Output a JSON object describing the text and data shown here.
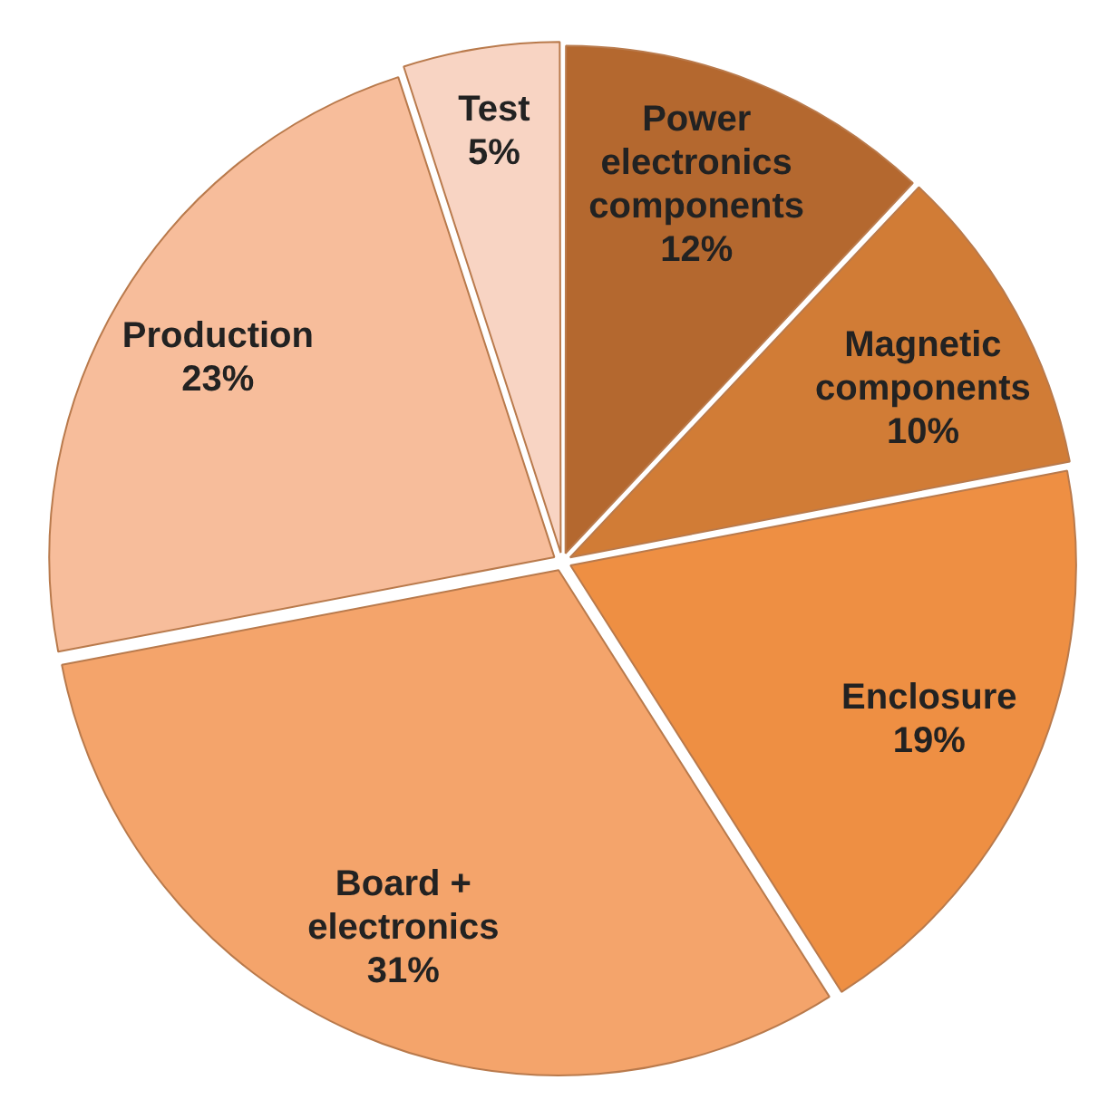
{
  "chart_data": {
    "type": "pie",
    "categories": [
      "Power electronics components",
      "Magnetic components",
      "Enclosure",
      "Board + electronics",
      "Production",
      "Test"
    ],
    "values": [
      12,
      10,
      19,
      31,
      23,
      5
    ],
    "colors": [
      "#b4682f",
      "#d17c36",
      "#ee8f43",
      "#f4a46b",
      "#f7bd9b",
      "#f8d4c3"
    ],
    "value_labels": [
      "12%",
      "10%",
      "19%",
      "31%",
      "23%",
      "5%"
    ]
  }
}
